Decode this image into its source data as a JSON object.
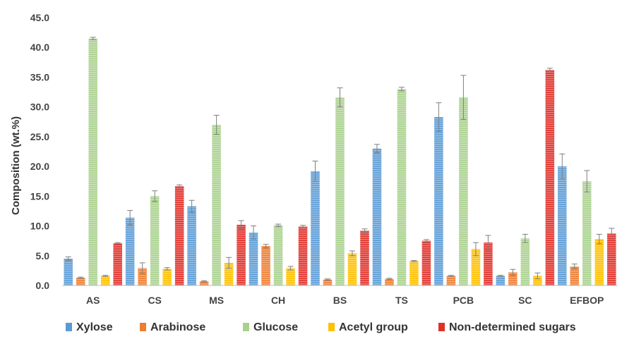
{
  "chart_data": {
    "type": "bar",
    "ylabel": "Composition (wt.%)",
    "xlabel": "",
    "ylim": [
      0,
      45
    ],
    "yticks": [
      "0.0",
      "5.0",
      "10.0",
      "15.0",
      "20.0",
      "25.0",
      "30.0",
      "35.0",
      "40.0",
      "45.0"
    ],
    "legend_position": "bottom",
    "grid": false,
    "categories": [
      "AS",
      "CS",
      "MS",
      "CH",
      "BS",
      "TS",
      "PCB",
      "SC",
      "EFBOP"
    ],
    "series": [
      {
        "name": "Xylose",
        "color": "#5b9bd5",
        "values": [
          4.5,
          11.4,
          13.3,
          8.9,
          19.2,
          23.0,
          28.3,
          1.6,
          20.0
        ],
        "errors": [
          0.3,
          1.2,
          1.0,
          1.1,
          1.7,
          0.7,
          2.4,
          0.1,
          2.1
        ]
      },
      {
        "name": "Arabinose",
        "color": "#ed7d31",
        "values": [
          1.3,
          2.9,
          0.7,
          6.6,
          1.0,
          1.1,
          1.6,
          2.2,
          3.2
        ],
        "errors": [
          0.1,
          0.9,
          0.1,
          0.3,
          0.1,
          0.1,
          0.1,
          0.5,
          0.4
        ]
      },
      {
        "name": "Glucose",
        "color": "#a9d18e",
        "values": [
          41.5,
          15.0,
          27.0,
          10.1,
          31.6,
          33.0,
          31.6,
          7.9,
          17.5
        ],
        "errors": [
          0.2,
          0.9,
          1.6,
          0.2,
          1.6,
          0.3,
          3.7,
          0.7,
          1.8
        ]
      },
      {
        "name": "Acetyl group",
        "color": "#ffc000",
        "values": [
          1.6,
          2.8,
          3.8,
          2.9,
          5.4,
          4.1,
          6.1,
          1.6,
          7.8
        ],
        "errors": [
          0.1,
          0.2,
          0.9,
          0.3,
          0.4,
          0.1,
          1.1,
          0.5,
          0.8
        ]
      },
      {
        "name": "Non-determined sugars",
        "color": "#e0302a",
        "values": [
          7.1,
          16.7,
          10.2,
          9.9,
          9.2,
          7.5,
          7.2,
          36.2,
          8.7
        ],
        "errors": [
          0.1,
          0.2,
          0.7,
          0.2,
          0.3,
          0.2,
          1.2,
          0.3,
          0.9
        ]
      }
    ]
  }
}
